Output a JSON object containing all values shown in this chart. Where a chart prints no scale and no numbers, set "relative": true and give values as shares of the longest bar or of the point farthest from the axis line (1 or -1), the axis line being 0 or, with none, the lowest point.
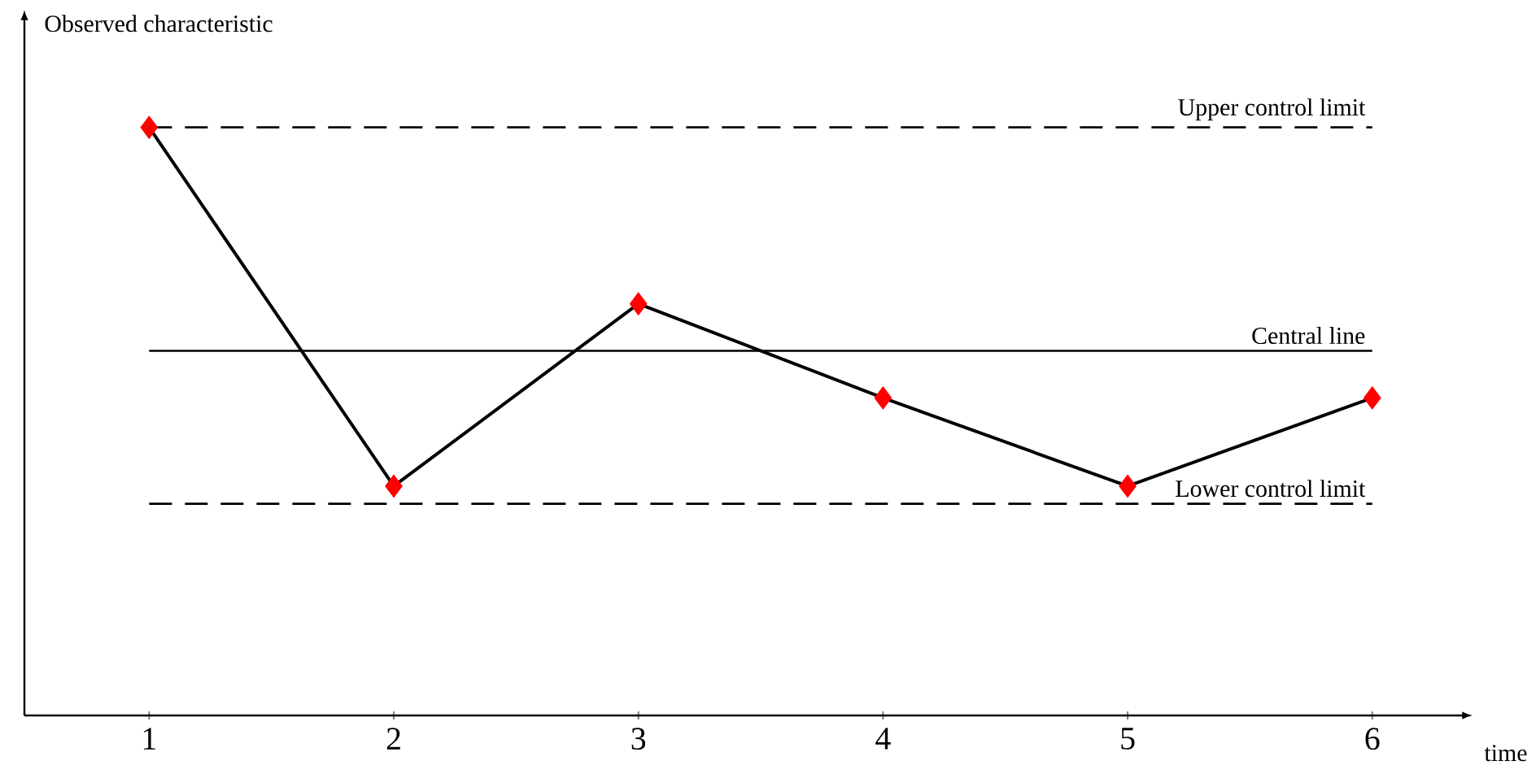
{
  "chart_data": {
    "type": "line",
    "relative": true,
    "xlabel": "time",
    "ylabel": "Observed characteristic",
    "categories": [
      "1",
      "2",
      "3",
      "4",
      "5",
      "6"
    ],
    "series": [
      {
        "color": "#000000",
        "values": [
          1,
          0.39,
          0.7,
          0.54,
          0.39,
          0.54
        ],
        "colors": [
          "#ff0000",
          "#ff0000",
          "#ff0000",
          "#ff0000",
          "#ff0000",
          "#ff0000"
        ]
      }
    ],
    "marker": "diamond",
    "line_style": "solid",
    "ref_lines": [
      {
        "axis": "y",
        "value": 1,
        "label": "Upper control limit",
        "line_style": "dashed",
        "color": "#000000"
      },
      {
        "axis": "y",
        "value": 0.62,
        "label": "Central line",
        "line_style": "solid",
        "color": "#000000"
      },
      {
        "axis": "y",
        "value": 0.36,
        "label": "Lower control limit",
        "line_style": "dashed",
        "color": "#000000"
      }
    ]
  }
}
